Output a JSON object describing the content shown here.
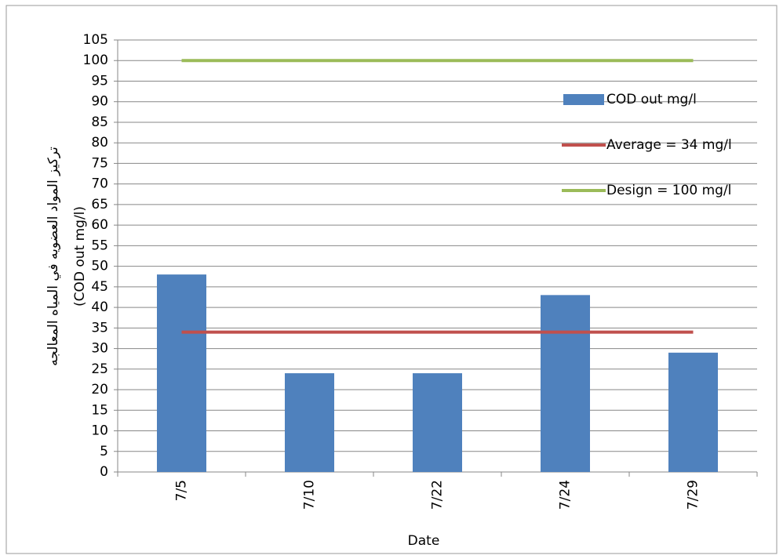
{
  "chart_data": {
    "type": "bar",
    "categories": [
      "7/5",
      "7/10",
      "7/22",
      "7/24",
      "7/29"
    ],
    "x_label": "Date",
    "y_label": [
      "تركيز المواد العضويه في المياه المعالجه",
      "(COD out mg/l)"
    ],
    "series": [
      {
        "name": "COD out mg/l",
        "type": "bar",
        "color": "#4f81bd",
        "values": [
          48,
          24,
          24,
          43,
          29
        ]
      },
      {
        "name": "Average = 34 mg/l",
        "type": "line",
        "color": "#c0504d",
        "values": [
          34,
          34,
          34,
          34,
          34
        ]
      },
      {
        "name": "Design = 100 mg/l",
        "type": "line",
        "color": "#9bbb59",
        "values": [
          100,
          100,
          100,
          100,
          100
        ]
      }
    ],
    "ylim": [
      0,
      105
    ],
    "yticks": [
      0,
      5,
      10,
      15,
      20,
      25,
      30,
      35,
      40,
      45,
      50,
      55,
      60,
      65,
      70,
      75,
      80,
      85,
      90,
      95,
      100,
      105
    ],
    "grid": true
  }
}
